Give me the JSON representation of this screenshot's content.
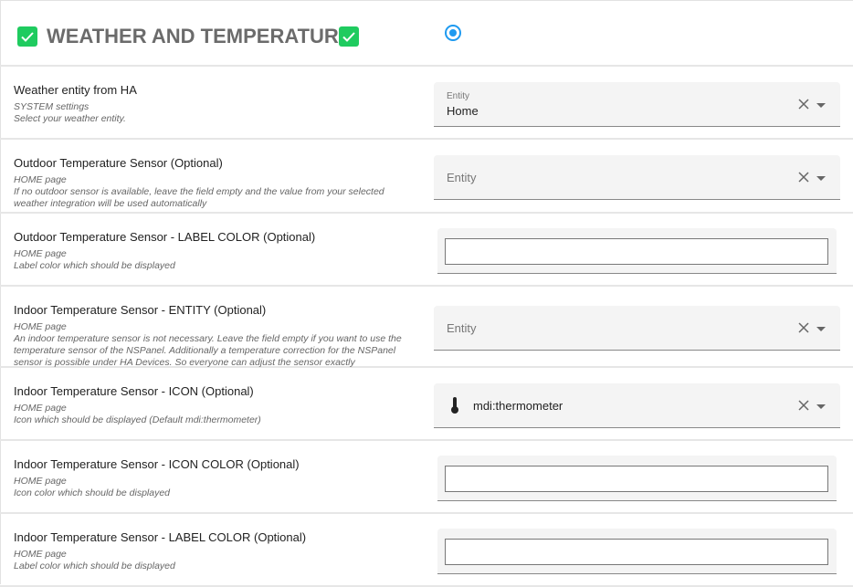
{
  "header": {
    "title": "WEATHER AND TEMPERATURE",
    "accent_color": "#1fcb5f",
    "radio_color": "#1e9af0",
    "radio_selected": true
  },
  "rows": [
    {
      "label": "Weather entity from HA",
      "desc": [
        "SYSTEM settings",
        "Select your weather entity."
      ],
      "control": "select",
      "floating_label": "Entity",
      "value": "Home"
    },
    {
      "label": "Outdoor Temperature Sensor (Optional)",
      "desc": [
        "HOME page",
        "If no outdoor sensor is available, leave the field empty and the value from your selected weather integration will be used automatically"
      ],
      "control": "select",
      "placeholder": "Entity",
      "value": ""
    },
    {
      "label": "Outdoor Temperature Sensor - LABEL COLOR (Optional)",
      "desc": [
        "HOME page",
        "Label color which should be displayed"
      ],
      "control": "color",
      "value": ""
    },
    {
      "label": "Indoor Temperature Sensor - ENTITY (Optional)",
      "desc": [
        "HOME page",
        "An indoor temperature sensor is not necessary. Leave the field empty if you want to use the temperature sensor of the NSPanel. Additionally a temperature correction for the NSPanel sensor is possible under HA Devices. So everyone can adjust the sensor exactly"
      ],
      "control": "select",
      "placeholder": "Entity",
      "value": ""
    },
    {
      "label": "Indoor Temperature Sensor - ICON (Optional)",
      "desc": [
        "HOME page",
        "Icon which should be displayed (Default mdi:thermometer)"
      ],
      "control": "icon",
      "value": "mdi:thermometer",
      "icon": "thermometer-icon"
    },
    {
      "label": "Indoor Temperature Sensor - ICON COLOR (Optional)",
      "desc": [
        "HOME page",
        "Icon color which should be displayed"
      ],
      "control": "color",
      "value": ""
    },
    {
      "label": "Indoor Temperature Sensor - LABEL COLOR (Optional)",
      "desc": [
        "HOME page",
        "Label color which should be displayed"
      ],
      "control": "color",
      "value": ""
    }
  ]
}
